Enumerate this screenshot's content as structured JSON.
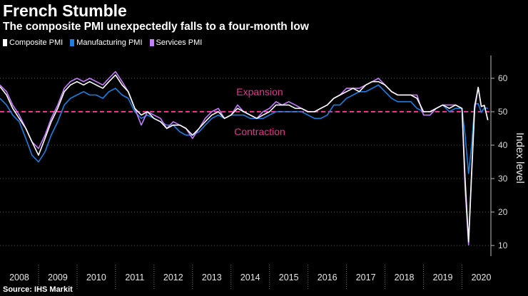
{
  "colors": {
    "background": "#000000",
    "composite": "#ffffff",
    "manufacturing": "#1f7fe0",
    "services": "#c77dff",
    "threshold": "#e8338a",
    "grid": "#555555"
  },
  "chart_data": {
    "type": "line",
    "title": "French Stumble",
    "subtitle": "The composite PMI unexpectedly falls to a four-month low",
    "source": "Source: IHS Markit",
    "xlabel": "",
    "ylabel": "Index level",
    "ylim": [
      5,
      67
    ],
    "yticks": [
      10,
      20,
      30,
      40,
      50,
      60
    ],
    "xlim": [
      2008.0,
      2020.75
    ],
    "year_ticks": [
      "2008",
      "2009",
      "2010",
      "2011",
      "2012",
      "2013",
      "2014",
      "2015",
      "2016",
      "2017",
      "2018",
      "2019",
      "2020"
    ],
    "threshold": 50,
    "annotations": [
      {
        "text": "Expansion",
        "x": 2008.0,
        "y": 56
      },
      {
        "text": "Contraction",
        "x": 2008.0,
        "y": 44
      }
    ],
    "legend_location": "top-left",
    "series": [
      {
        "name": "Composite PMI",
        "color_key": "composite",
        "x": [
          2008.0,
          2008.17,
          2008.33,
          2008.5,
          2008.67,
          2008.83,
          2009.0,
          2009.17,
          2009.33,
          2009.5,
          2009.67,
          2009.83,
          2010.0,
          2010.17,
          2010.33,
          2010.5,
          2010.67,
          2010.83,
          2011.0,
          2011.17,
          2011.33,
          2011.5,
          2011.67,
          2011.83,
          2012.0,
          2012.17,
          2012.33,
          2012.5,
          2012.67,
          2012.83,
          2013.0,
          2013.17,
          2013.33,
          2013.5,
          2013.67,
          2013.83,
          2014.0,
          2014.17,
          2014.33,
          2014.5,
          2014.67,
          2014.83,
          2015.0,
          2015.17,
          2015.33,
          2015.5,
          2015.67,
          2015.83,
          2016.0,
          2016.17,
          2016.33,
          2016.5,
          2016.67,
          2016.83,
          2017.0,
          2017.17,
          2017.33,
          2017.5,
          2017.67,
          2017.83,
          2018.0,
          2018.17,
          2018.33,
          2018.5,
          2018.67,
          2018.83,
          2019.0,
          2019.17,
          2019.33,
          2019.5,
          2019.67,
          2019.83,
          2020.0,
          2020.08,
          2020.17,
          2020.25,
          2020.33,
          2020.42,
          2020.5,
          2020.58,
          2020.67
        ],
        "values": [
          57.5,
          55,
          51,
          48,
          45,
          41,
          37,
          42,
          47,
          51,
          56,
          58,
          59,
          58,
          59,
          58,
          57,
          59,
          61,
          58,
          56,
          51,
          49,
          50,
          48,
          47,
          45,
          46,
          46,
          45,
          43,
          45,
          47,
          49,
          50,
          48,
          49,
          51,
          50,
          49,
          48,
          49,
          50,
          52,
          52,
          52,
          51,
          51,
          50,
          50,
          51,
          52,
          54,
          55,
          56,
          57,
          56,
          58,
          59,
          59,
          58,
          56,
          55,
          55,
          55,
          54,
          50,
          50,
          51,
          52,
          51,
          52,
          51,
          30,
          11.1,
          32,
          51.7,
          57.3,
          51.6,
          51.9,
          47.5
        ]
      },
      {
        "name": "Manufacturing PMI",
        "color_key": "manufacturing",
        "x": [
          2008.0,
          2008.17,
          2008.33,
          2008.5,
          2008.67,
          2008.83,
          2009.0,
          2009.17,
          2009.33,
          2009.5,
          2009.67,
          2009.83,
          2010.0,
          2010.17,
          2010.33,
          2010.5,
          2010.67,
          2010.83,
          2011.0,
          2011.17,
          2011.33,
          2011.5,
          2011.67,
          2011.83,
          2012.0,
          2012.17,
          2012.33,
          2012.5,
          2012.67,
          2012.83,
          2013.0,
          2013.17,
          2013.33,
          2013.5,
          2013.67,
          2013.83,
          2014.0,
          2014.17,
          2014.33,
          2014.5,
          2014.67,
          2014.83,
          2015.0,
          2015.17,
          2015.33,
          2015.5,
          2015.67,
          2015.83,
          2016.0,
          2016.17,
          2016.33,
          2016.5,
          2016.67,
          2016.83,
          2017.0,
          2017.17,
          2017.33,
          2017.5,
          2017.67,
          2017.83,
          2018.0,
          2018.17,
          2018.33,
          2018.5,
          2018.67,
          2018.83,
          2019.0,
          2019.17,
          2019.33,
          2019.5,
          2019.67,
          2019.83,
          2020.0,
          2020.08,
          2020.17,
          2020.25,
          2020.33,
          2020.42,
          2020.5,
          2020.58,
          2020.67
        ],
        "values": [
          54,
          52,
          49,
          47,
          42,
          37,
          35,
          38,
          43,
          47,
          52,
          54,
          55,
          56,
          55,
          55,
          54,
          56,
          57,
          55,
          54,
          50,
          48,
          49,
          48,
          47,
          46,
          46,
          44,
          43,
          43,
          44,
          46,
          48,
          49,
          48,
          49,
          49,
          49,
          48,
          48,
          48,
          49,
          50,
          50,
          50,
          50,
          50,
          49,
          48,
          48,
          49,
          52,
          52,
          54,
          55,
          56,
          56,
          57,
          58,
          56,
          54,
          53,
          53,
          53,
          51,
          50,
          50,
          51,
          52,
          50,
          51,
          51,
          43,
          31.5,
          40,
          52.3,
          52.4,
          49.8,
          51.2,
          51.0
        ]
      },
      {
        "name": "Services PMI",
        "color_key": "services",
        "x": [
          2008.0,
          2008.17,
          2008.33,
          2008.5,
          2008.67,
          2008.83,
          2009.0,
          2009.17,
          2009.33,
          2009.5,
          2009.67,
          2009.83,
          2010.0,
          2010.17,
          2010.33,
          2010.5,
          2010.67,
          2010.83,
          2011.0,
          2011.17,
          2011.33,
          2011.5,
          2011.67,
          2011.83,
          2012.0,
          2012.17,
          2012.33,
          2012.5,
          2012.67,
          2012.83,
          2013.0,
          2013.17,
          2013.33,
          2013.5,
          2013.67,
          2013.83,
          2014.0,
          2014.17,
          2014.33,
          2014.5,
          2014.67,
          2014.83,
          2015.0,
          2015.17,
          2015.33,
          2015.5,
          2015.67,
          2015.83,
          2016.0,
          2016.17,
          2016.33,
          2016.5,
          2016.67,
          2016.83,
          2017.0,
          2017.17,
          2017.33,
          2017.5,
          2017.67,
          2017.83,
          2018.0,
          2018.17,
          2018.33,
          2018.5,
          2018.67,
          2018.83,
          2019.0,
          2019.17,
          2019.33,
          2019.5,
          2019.67,
          2019.83,
          2020.0,
          2020.08,
          2020.17,
          2020.25,
          2020.33,
          2020.42,
          2020.5,
          2020.58,
          2020.67
        ],
        "values": [
          58,
          56,
          52,
          49,
          45,
          41,
          39,
          43,
          48,
          52,
          57,
          59,
          60,
          59,
          60,
          59,
          58,
          60,
          62,
          59,
          56,
          51,
          46,
          50,
          49,
          48,
          45,
          47,
          46,
          45,
          42,
          45,
          48,
          50,
          51,
          48,
          49,
          52,
          50,
          49,
          48,
          50,
          51,
          53,
          52,
          53,
          52,
          51,
          50,
          50,
          51,
          52,
          54,
          55,
          57,
          57,
          57,
          58,
          59,
          60,
          58,
          56,
          55,
          55,
          55,
          55,
          49,
          49,
          51,
          52,
          52,
          52,
          51,
          27,
          10.2,
          31,
          50.7,
          57.3,
          51.5,
          51.9,
          47.5
        ]
      }
    ]
  }
}
